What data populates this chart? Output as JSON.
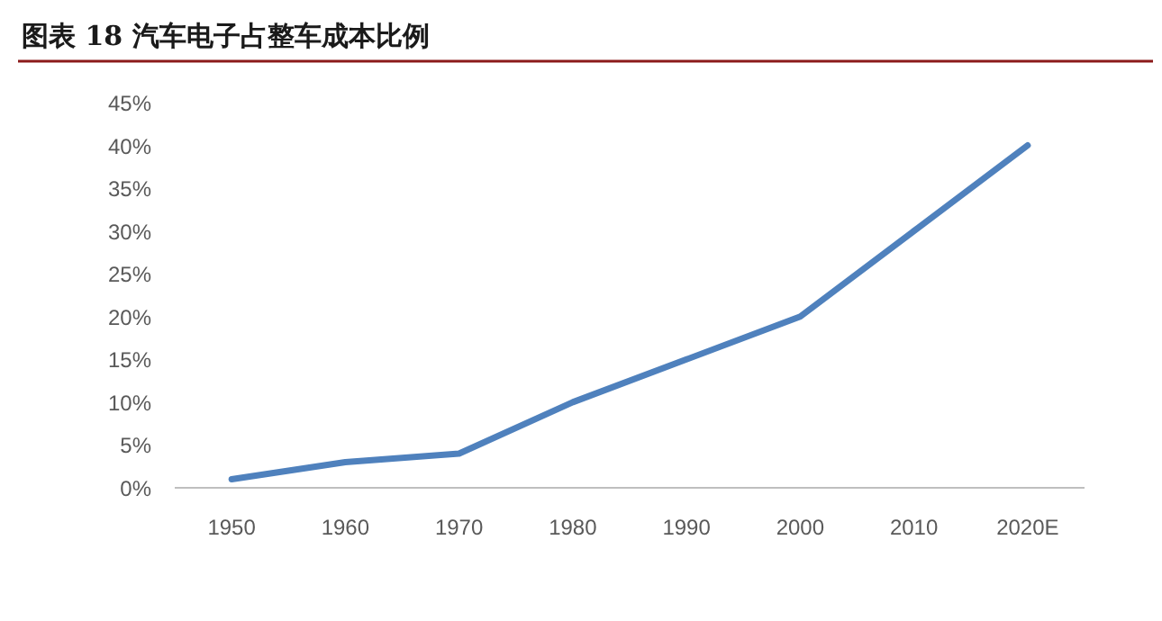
{
  "chart_data": {
    "type": "line",
    "title": "图表 18 汽车电子占整车成本比例",
    "categories": [
      "1950",
      "1960",
      "1970",
      "1980",
      "1990",
      "2000",
      "2010",
      "2020E"
    ],
    "values": [
      1,
      3,
      4,
      10,
      15,
      20,
      30,
      40
    ],
    "color": "#4f81bd",
    "ylim": [
      0,
      45
    ],
    "yticks": [
      {
        "value": 0,
        "label": "0%"
      },
      {
        "value": 5,
        "label": "5%"
      },
      {
        "value": 10,
        "label": "10%"
      },
      {
        "value": 15,
        "label": "15%"
      },
      {
        "value": 20,
        "label": "20%"
      },
      {
        "value": 25,
        "label": "25%"
      },
      {
        "value": 30,
        "label": "30%"
      },
      {
        "value": 35,
        "label": "35%"
      },
      {
        "value": 40,
        "label": "40%"
      },
      {
        "value": 45,
        "label": "45%"
      }
    ]
  }
}
